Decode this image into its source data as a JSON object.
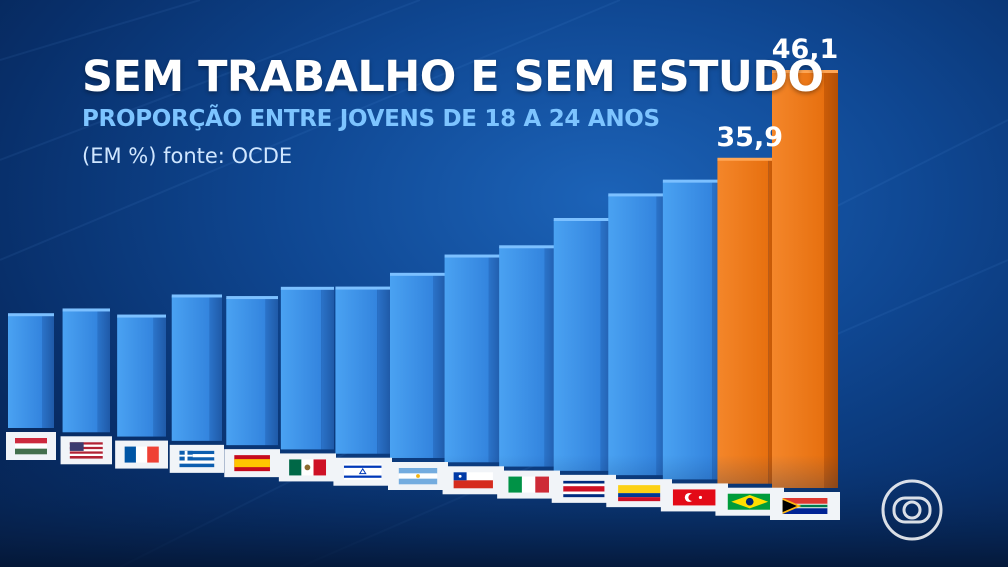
{
  "chart_data": {
    "type": "bar",
    "title": "SEM TRABALHO E SEM ESTUDO",
    "subtitle": "PROPORÇÃO ENTRE JOVENS DE 18 A 24 ANOS",
    "unit_note": "(EM %) fonte: OCDE",
    "ylim": [
      0,
      50
    ],
    "categories": [
      "Hungria",
      "Estados Unidos",
      "França",
      "Grécia",
      "Espanha",
      "México",
      "Israel",
      "Argentina",
      "Chile",
      "Itália",
      "Costa Rica",
      "Colômbia",
      "Turquia",
      "Brasil",
      "África do Sul"
    ],
    "flag_icons": [
      "hungary-flag",
      "usa-flag",
      "france-flag",
      "greece-flag",
      "spain-flag",
      "mexico-flag",
      "israel-flag",
      "argentina-flag",
      "chile-flag",
      "italy-flag",
      "costa-rica-flag",
      "colombia-flag",
      "turkey-flag",
      "brazil-flag",
      "south-africa-flag"
    ],
    "values": [
      12.5,
      13.5,
      13.3,
      16.0,
      16.3,
      17.8,
      18.3,
      20.3,
      22.8,
      24.3,
      27.8,
      31.0,
      33.0,
      35.9,
      46.1
    ],
    "data_labels": [
      "",
      "",
      "",
      "",
      "",
      "",
      "",
      "",
      "",
      "",
      "",
      "",
      "",
      "35,9",
      "46,1"
    ],
    "colors": {
      "bar": "#3a8fe6",
      "highlight": "#ef7a16"
    },
    "highlight_indices": [
      13,
      14
    ]
  },
  "branding": {
    "logo_icon": "globo-logo-icon"
  }
}
